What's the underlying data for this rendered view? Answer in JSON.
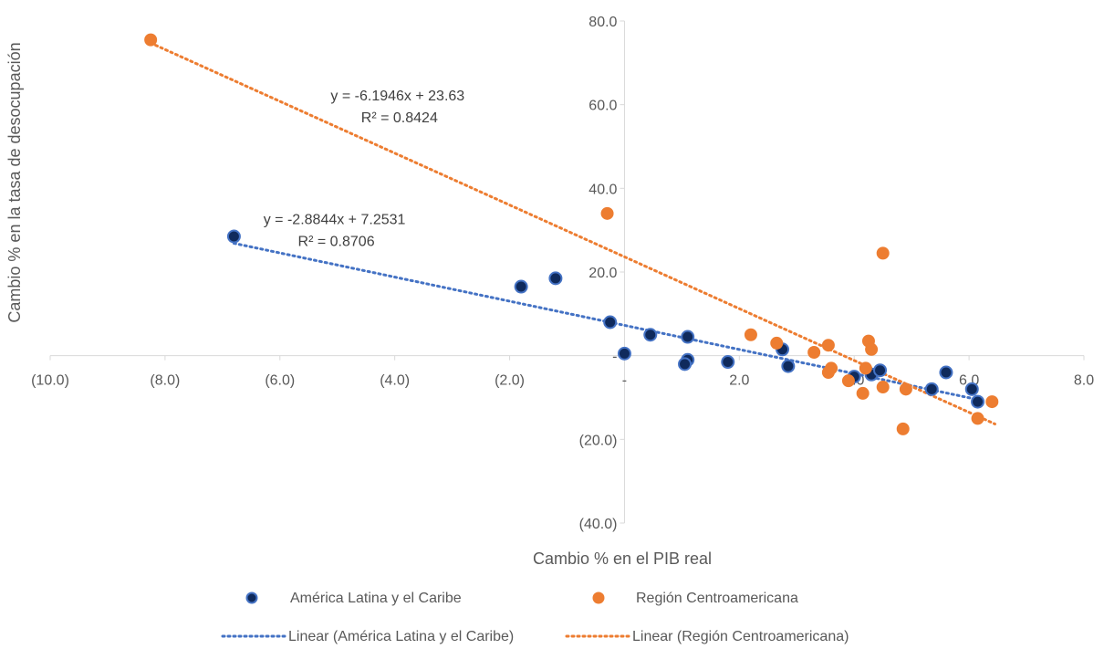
{
  "chart_data": {
    "type": "scatter",
    "xlabel": "Cambio % en el PIB real",
    "ylabel": "Cambio % en la tasa de desocupación",
    "xlim": [
      -10,
      8
    ],
    "ylim": [
      -40,
      80
    ],
    "x_ticks": [
      {
        "value": -10,
        "label": "(10.0)"
      },
      {
        "value": -8,
        "label": "(8.0)"
      },
      {
        "value": -6,
        "label": "(6.0)"
      },
      {
        "value": -4,
        "label": "(4.0)"
      },
      {
        "value": -2,
        "label": "(2.0)"
      },
      {
        "value": 0,
        "label": "-"
      },
      {
        "value": 2,
        "label": "2.0"
      },
      {
        "value": 4,
        "label": "4.0"
      },
      {
        "value": 6,
        "label": "6.0"
      },
      {
        "value": 8,
        "label": "8.0"
      }
    ],
    "y_ticks": [
      {
        "value": 80,
        "label": "80.0"
      },
      {
        "value": 60,
        "label": "60.0"
      },
      {
        "value": 40,
        "label": "40.0"
      },
      {
        "value": 20,
        "label": "20.0"
      },
      {
        "value": 0,
        "label": "-"
      },
      {
        "value": -20,
        "label": "(20.0)"
      },
      {
        "value": -40,
        "label": "(40.0)"
      }
    ],
    "grid": false,
    "legend_position": "bottom",
    "series": [
      {
        "name": "América Latina y el Caribe",
        "color": "#0f2a5c",
        "edge": "#4472c4",
        "points": [
          [
            -6.8,
            28.5
          ],
          [
            -1.8,
            16.5
          ],
          [
            -1.2,
            18.5
          ],
          [
            -0.25,
            8.0
          ],
          [
            0.0,
            0.5
          ],
          [
            0.45,
            5.0
          ],
          [
            1.1,
            4.5
          ],
          [
            1.1,
            -1.0
          ],
          [
            1.05,
            -2.0
          ],
          [
            1.8,
            -1.5
          ],
          [
            2.75,
            1.5
          ],
          [
            2.85,
            -2.5
          ],
          [
            4.0,
            -5.0
          ],
          [
            4.3,
            -4.5
          ],
          [
            4.45,
            -3.5
          ],
          [
            5.35,
            -8.0
          ],
          [
            5.6,
            -4.0
          ],
          [
            6.05,
            -8.0
          ],
          [
            6.15,
            -11.0
          ]
        ],
        "trend": {
          "name": "Linear (América Latina y el Caribe)",
          "slope": -2.8844,
          "intercept": 7.2531,
          "x_range": [
            -6.8,
            6.2
          ],
          "equation": "y = -2.8844x + 7.2531",
          "r2": "R² = 0.8706"
        }
      },
      {
        "name": "Región Centroamericana",
        "color": "#ed7d31",
        "edge": "#ed7d31",
        "points": [
          [
            -8.25,
            75.5
          ],
          [
            -0.3,
            34.0
          ],
          [
            2.2,
            5.0
          ],
          [
            2.65,
            3.0
          ],
          [
            3.3,
            0.8
          ],
          [
            3.55,
            2.5
          ],
          [
            3.55,
            -4.0
          ],
          [
            3.6,
            -3.0
          ],
          [
            3.9,
            -6.0
          ],
          [
            4.15,
            -9.0
          ],
          [
            4.2,
            -3.0
          ],
          [
            4.25,
            3.5
          ],
          [
            4.3,
            1.5
          ],
          [
            4.5,
            24.5
          ],
          [
            4.5,
            -7.5
          ],
          [
            4.85,
            -17.5
          ],
          [
            4.9,
            -8.0
          ],
          [
            6.15,
            -15.0
          ],
          [
            6.4,
            -11.0
          ]
        ],
        "trend": {
          "name": "Linear (Región Centroamericana)",
          "slope": -6.1946,
          "intercept": 23.63,
          "x_range": [
            -8.25,
            6.45
          ],
          "equation": "y = -6.1946x + 23.63",
          "r2": "R² = 0.8424"
        }
      }
    ]
  }
}
